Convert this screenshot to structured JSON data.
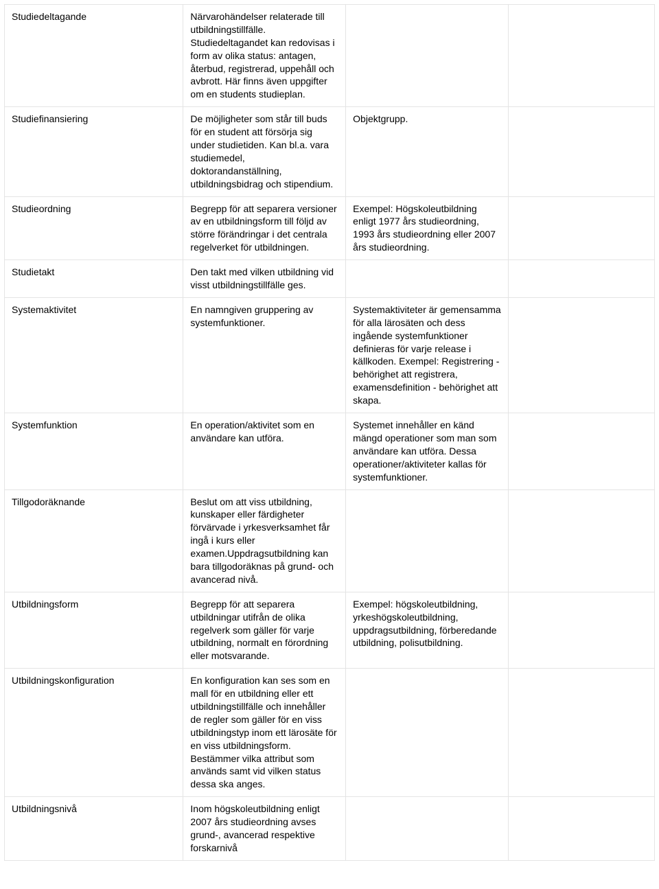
{
  "table": {
    "border_color": "#e4e4e4",
    "font_size": 14,
    "text_color": "#000000",
    "background_color": "#ffffff",
    "column_widths_pct": [
      27.5,
      25,
      25,
      22.5
    ],
    "rows": [
      {
        "term": "Studiedeltagande",
        "definition": "Närvarohändelser relaterade till utbildningstillfälle. Studiedeltagandet kan redovisas i form av olika status: antagen, återbud, registrerad, uppehåll och avbrott. Här finns även uppgifter om en students studieplan.",
        "note": "",
        "extra": ""
      },
      {
        "term": "Studiefinansiering",
        "definition": "De möjligheter som står till buds för en student att försörja sig under studietiden. Kan bl.a. vara studiemedel, doktorandanställning, utbildningsbidrag och stipendium.",
        "note": "Objektgrupp.",
        "extra": ""
      },
      {
        "term": "Studieordning",
        "definition": "Begrepp för att separera versioner av en utbildningsform till följd av större förändringar i det centrala regelverket för utbildningen.",
        "note": "Exempel: Högskoleutbildning enligt 1977 års studieordning, 1993 års studieordning eller 2007 års studieordning.",
        "extra": ""
      },
      {
        "term": "Studietakt",
        "definition": "Den takt med vilken utbildning vid visst utbildningstillfälle ges.",
        "note": "",
        "extra": ""
      },
      {
        "term": "Systemaktivitet",
        "definition": "En namngiven gruppering av systemfunktioner.",
        "note": "Systemaktiviteter är gemensamma för alla lärosäten och dess ingående systemfunktioner definieras för varje release i källkoden. Exempel: Registrering - behörighet att registrera, examensdefinition - behörighet att skapa.",
        "extra": ""
      },
      {
        "term": "Systemfunktion",
        "definition": "En operation/aktivitet som en användare kan utföra.",
        "note": "Systemet innehåller en känd mängd operationer som man som  användare kan utföra. Dessa operationer/aktiviteter kallas för systemfunktioner.",
        "extra": ""
      },
      {
        "term": "Tillgodoräknande",
        "definition": "Beslut om att viss utbildning, kunskaper eller färdigheter förvärvade i yrkesverksamhet får ingå i kurs eller examen.Uppdragsutbildning kan bara tillgodoräknas på grund- och avancerad nivå.",
        "note": "",
        "extra": ""
      },
      {
        "term": "Utbildningsform",
        "definition": "Begrepp för att separera utbildningar utifrån de olika regelverk som gäller för varje utbildning, normalt en förordning eller motsvarande.",
        "note": "Exempel: högskoleutbildning, yrkeshögskoleutbildning, uppdragsutbildning, förberedande utbildning, polisutbildning.",
        "extra": ""
      },
      {
        "term": "Utbildningskonfiguration",
        "definition": "En konfiguration kan ses som en mall för en utbildning eller ett utbildningstillfälle och innehåller de regler som gäller för en viss utbildningstyp inom ett lärosäte för en viss utbildningsform. Bestämmer vilka attribut som används samt vid vilken status dessa ska anges.",
        "note": "",
        "extra": ""
      },
      {
        "term": "Utbildningsnivå",
        "definition": "Inom högskoleutbildning enligt 2007 års studieordning avses grund-, avancerad respektive forskarnivå",
        "note": "",
        "extra": ""
      }
    ]
  }
}
